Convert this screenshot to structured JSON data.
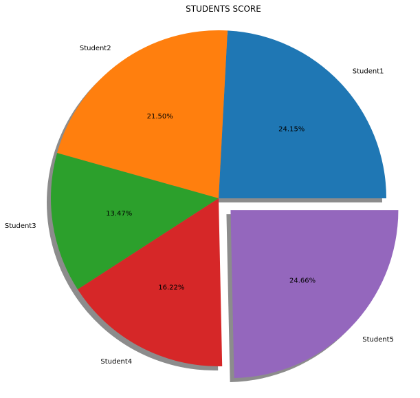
{
  "chart_data": {
    "type": "pie",
    "title": "STUDENTS SCORE",
    "categories": [
      "Student1",
      "Student2",
      "Student3",
      "Student4",
      "Student5"
    ],
    "values": [
      24.15,
      21.5,
      13.47,
      16.22,
      24.66
    ],
    "percent_labels": [
      "24.15%",
      "21.50%",
      "13.47%",
      "16.22%",
      "24.66%"
    ],
    "colors": [
      "#1f77b4",
      "#ff7f0e",
      "#2ca02c",
      "#d62728",
      "#9467bd"
    ],
    "explode": [
      0,
      0,
      0,
      0,
      0.1
    ],
    "shadow": true,
    "start_angle_deg": 0,
    "direction": "counterclockwise",
    "legend": "none"
  }
}
